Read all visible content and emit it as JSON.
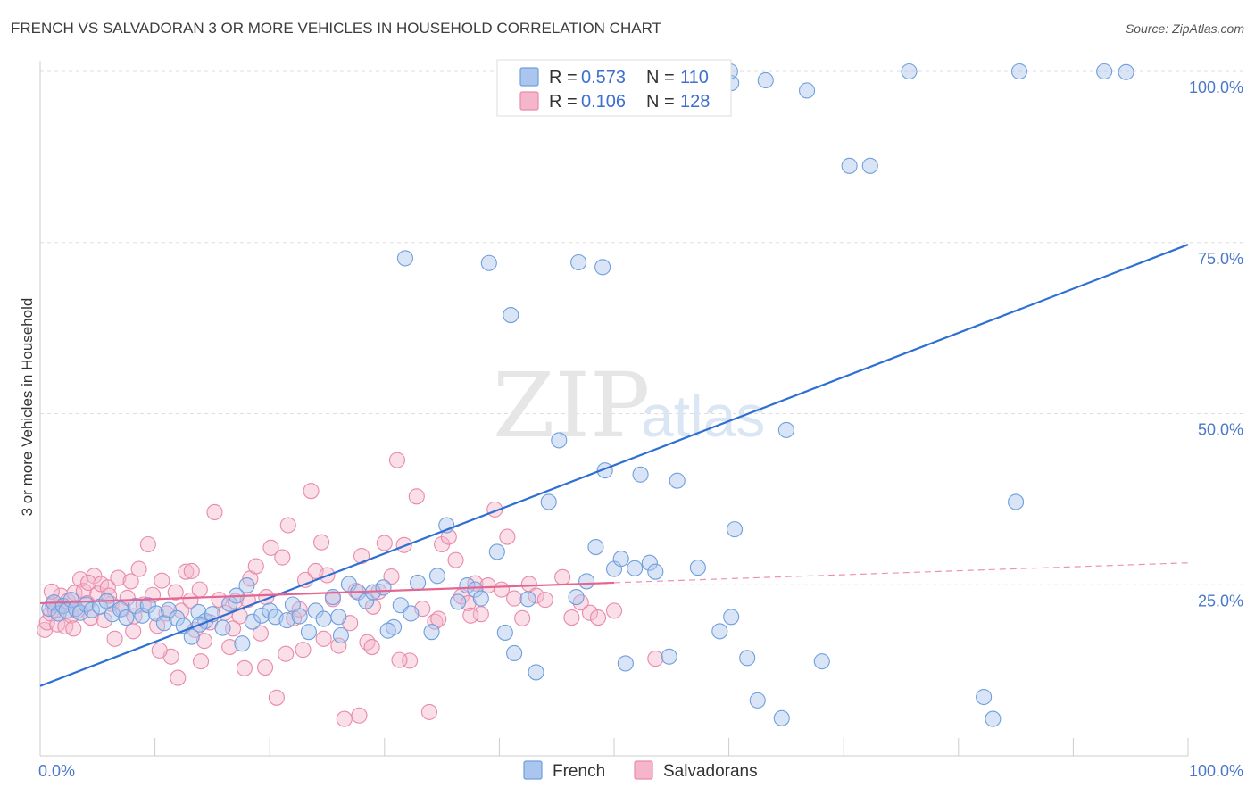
{
  "title": "FRENCH VS SALVADORAN 3 OR MORE VEHICLES IN HOUSEHOLD CORRELATION CHART",
  "source": "Source: ZipAtlas.com",
  "watermark": {
    "zip": "ZIP",
    "atlas": "atlas"
  },
  "colors": {
    "french_fill": "#aac6ee",
    "french_stroke": "#6f9fdc",
    "french_line": "#2d6fd3",
    "salv_fill": "#f5b6cc",
    "salv_stroke": "#e98aab",
    "salv_line": "#e56590",
    "grid": "#dddddd",
    "tick": "#4a78c8"
  },
  "legend": {
    "rows": [
      {
        "r_label": "R =",
        "r_value": "0.573",
        "n_label": "N =",
        "n_value": "110"
      },
      {
        "r_label": "R =",
        "r_value": "0.106",
        "n_label": "N =",
        "n_value": "128"
      }
    ]
  },
  "chart_data": {
    "type": "scatter",
    "title": "FRENCH VS SALVADORAN 3 OR MORE VEHICLES IN HOUSEHOLD CORRELATION CHART",
    "xlabel": "",
    "ylabel": "3 or more Vehicles in Household",
    "xlim": [
      0,
      100
    ],
    "ylim": [
      0,
      100
    ],
    "x_tick_labels": [
      "0.0%",
      "100.0%"
    ],
    "y_ticks": [
      25,
      50,
      75,
      100
    ],
    "y_tick_labels": [
      "25.0%",
      "50.0%",
      "75.0%",
      "100.0%"
    ],
    "grid": true,
    "series": [
      {
        "name": "French",
        "r": 0.573,
        "n": 110,
        "trend": {
          "x0": 0,
          "y0": 10.2,
          "x1": 100,
          "y1": 74.7,
          "style": "solid"
        },
        "points": [
          [
            0.8,
            21.5
          ],
          [
            1.2,
            22.4
          ],
          [
            1.6,
            20.8
          ],
          [
            2.0,
            21.9
          ],
          [
            2.3,
            21.2
          ],
          [
            2.7,
            22.8
          ],
          [
            3.1,
            21.5
          ],
          [
            3.5,
            20.9
          ],
          [
            4.0,
            22.1
          ],
          [
            4.5,
            21.3
          ],
          [
            5.2,
            21.8
          ],
          [
            5.8,
            22.6
          ],
          [
            6.3,
            20.7
          ],
          [
            7.0,
            21.4
          ],
          [
            7.5,
            20.2
          ],
          [
            8.3,
            21.9
          ],
          [
            8.9,
            20.5
          ],
          [
            9.4,
            22.0
          ],
          [
            10.1,
            20.8
          ],
          [
            10.8,
            19.4
          ],
          [
            11.2,
            21.3
          ],
          [
            11.9,
            20.1
          ],
          [
            12.5,
            19.0
          ],
          [
            13.2,
            17.4
          ],
          [
            13.8,
            21.0
          ],
          [
            14.4,
            19.7
          ],
          [
            15.0,
            20.7
          ],
          [
            15.9,
            18.7
          ],
          [
            16.5,
            22.2
          ],
          [
            17.1,
            23.4
          ],
          [
            17.6,
            16.4
          ],
          [
            18.0,
            24.9
          ],
          [
            18.5,
            19.6
          ],
          [
            19.3,
            20.5
          ],
          [
            20.0,
            21.2
          ],
          [
            20.5,
            20.3
          ],
          [
            21.5,
            19.8
          ],
          [
            22.0,
            22.1
          ],
          [
            22.6,
            20.4
          ],
          [
            23.4,
            18.1
          ],
          [
            24.0,
            21.2
          ],
          [
            24.7,
            20.0
          ],
          [
            25.5,
            23.2
          ],
          [
            26.2,
            17.6
          ],
          [
            26.9,
            25.1
          ],
          [
            27.7,
            23.9
          ],
          [
            28.4,
            22.6
          ],
          [
            29.0,
            23.9
          ],
          [
            29.9,
            24.6
          ],
          [
            30.8,
            18.8
          ],
          [
            31.4,
            22.0
          ],
          [
            32.3,
            20.8
          ],
          [
            32.9,
            25.3
          ],
          [
            34.1,
            18.1
          ],
          [
            34.6,
            26.3
          ],
          [
            35.4,
            33.7
          ],
          [
            36.4,
            22.5
          ],
          [
            37.2,
            24.9
          ],
          [
            37.9,
            24.3
          ],
          [
            38.4,
            23.0
          ],
          [
            39.8,
            29.8
          ],
          [
            40.5,
            18.0
          ],
          [
            41.3,
            15.0
          ],
          [
            42.5,
            22.9
          ],
          [
            43.2,
            12.2
          ],
          [
            44.3,
            37.1
          ],
          [
            45.2,
            46.1
          ],
          [
            46.7,
            23.2
          ],
          [
            47.6,
            25.5
          ],
          [
            48.4,
            30.5
          ],
          [
            49.2,
            41.7
          ],
          [
            50.0,
            27.3
          ],
          [
            50.6,
            28.8
          ],
          [
            51.0,
            13.5
          ],
          [
            51.8,
            27.4
          ],
          [
            52.3,
            41.1
          ],
          [
            53.1,
            28.2
          ],
          [
            53.6,
            26.9
          ],
          [
            54.8,
            14.5
          ],
          [
            55.5,
            40.2
          ],
          [
            57.3,
            27.5
          ],
          [
            59.2,
            18.2
          ],
          [
            60.2,
            20.3
          ],
          [
            60.5,
            33.1
          ],
          [
            61.6,
            14.3
          ],
          [
            62.5,
            8.1
          ],
          [
            64.6,
            5.5
          ],
          [
            65.0,
            47.6
          ],
          [
            66.8,
            97.2
          ],
          [
            68.1,
            13.8
          ],
          [
            31.8,
            72.7
          ],
          [
            39.1,
            72.0
          ],
          [
            41.0,
            64.4
          ],
          [
            46.9,
            72.1
          ],
          [
            49.0,
            71.4
          ],
          [
            60.2,
            98.3
          ],
          [
            70.5,
            86.2
          ],
          [
            72.3,
            86.2
          ],
          [
            75.7,
            100.0
          ],
          [
            82.2,
            8.6
          ],
          [
            83.0,
            5.4
          ],
          [
            85.0,
            37.1
          ],
          [
            85.3,
            100.0
          ],
          [
            92.7,
            100.0
          ],
          [
            94.6,
            99.9
          ],
          [
            60.1,
            100.0
          ],
          [
            63.2,
            98.7
          ],
          [
            13.9,
            19.2
          ],
          [
            26.0,
            20.3
          ],
          [
            30.3,
            18.3
          ]
        ]
      },
      {
        "name": "Salvadorans",
        "r": 0.106,
        "n": 128,
        "trend": {
          "x0": 0,
          "y0": 22.3,
          "x1": 50,
          "y1": 25.3,
          "x2": 100,
          "y2": 28.2,
          "style": "solid-then-dashed"
        },
        "points": [
          [
            0.4,
            18.4
          ],
          [
            0.6,
            19.5
          ],
          [
            0.9,
            20.8
          ],
          [
            1.1,
            22.1
          ],
          [
            1.3,
            21.3
          ],
          [
            1.5,
            19.2
          ],
          [
            1.8,
            23.4
          ],
          [
            2.0,
            21.9
          ],
          [
            2.2,
            18.9
          ],
          [
            2.4,
            22.6
          ],
          [
            2.7,
            20.5
          ],
          [
            3.0,
            23.8
          ],
          [
            3.2,
            21.2
          ],
          [
            3.5,
            25.8
          ],
          [
            3.8,
            24.1
          ],
          [
            4.1,
            22.3
          ],
          [
            4.4,
            20.2
          ],
          [
            4.7,
            26.3
          ],
          [
            5.0,
            23.7
          ],
          [
            5.3,
            25.1
          ],
          [
            5.6,
            19.8
          ],
          [
            5.9,
            24.6
          ],
          [
            6.2,
            22.2
          ],
          [
            6.5,
            17.1
          ],
          [
            6.8,
            26.0
          ],
          [
            7.2,
            21.5
          ],
          [
            7.6,
            23.1
          ],
          [
            7.9,
            25.5
          ],
          [
            8.2,
            20.4
          ],
          [
            8.6,
            27.3
          ],
          [
            9.0,
            22.1
          ],
          [
            9.4,
            30.9
          ],
          [
            9.8,
            23.5
          ],
          [
            10.2,
            19.0
          ],
          [
            10.6,
            25.6
          ],
          [
            11.0,
            20.8
          ],
          [
            11.4,
            14.5
          ],
          [
            11.8,
            23.9
          ],
          [
            12.3,
            21.2
          ],
          [
            12.7,
            26.9
          ],
          [
            13.1,
            22.7
          ],
          [
            13.5,
            18.4
          ],
          [
            13.9,
            24.3
          ],
          [
            14.3,
            16.8
          ],
          [
            14.8,
            19.5
          ],
          [
            15.2,
            35.6
          ],
          [
            15.6,
            22.8
          ],
          [
            16.1,
            20.9
          ],
          [
            16.5,
            15.9
          ],
          [
            17.0,
            22.6
          ],
          [
            17.4,
            20.4
          ],
          [
            17.8,
            12.8
          ],
          [
            18.3,
            25.9
          ],
          [
            18.8,
            27.7
          ],
          [
            19.2,
            17.9
          ],
          [
            19.7,
            23.2
          ],
          [
            20.1,
            30.4
          ],
          [
            20.6,
            8.5
          ],
          [
            21.1,
            29.0
          ],
          [
            21.6,
            33.7
          ],
          [
            22.1,
            20.1
          ],
          [
            22.6,
            21.4
          ],
          [
            23.1,
            25.7
          ],
          [
            23.6,
            38.7
          ],
          [
            24.0,
            27.0
          ],
          [
            24.5,
            31.2
          ],
          [
            25.0,
            26.4
          ],
          [
            25.5,
            22.9
          ],
          [
            26.0,
            16.1
          ],
          [
            26.5,
            5.4
          ],
          [
            27.0,
            19.4
          ],
          [
            27.5,
            24.1
          ],
          [
            28.0,
            29.2
          ],
          [
            28.5,
            16.6
          ],
          [
            29.0,
            21.8
          ],
          [
            29.5,
            24.0
          ],
          [
            30.0,
            31.1
          ],
          [
            30.6,
            26.2
          ],
          [
            31.1,
            43.2
          ],
          [
            31.7,
            30.8
          ],
          [
            32.2,
            13.9
          ],
          [
            32.8,
            37.9
          ],
          [
            33.3,
            21.5
          ],
          [
            33.9,
            6.4
          ],
          [
            34.4,
            19.6
          ],
          [
            35.0,
            30.9
          ],
          [
            35.6,
            32.0
          ],
          [
            36.2,
            28.6
          ],
          [
            36.7,
            23.3
          ],
          [
            37.3,
            22.3
          ],
          [
            37.9,
            25.2
          ],
          [
            38.4,
            20.7
          ],
          [
            39.0,
            24.9
          ],
          [
            39.6,
            36.0
          ],
          [
            40.2,
            24.3
          ],
          [
            40.7,
            32.0
          ],
          [
            41.3,
            23.0
          ],
          [
            42.0,
            20.1
          ],
          [
            42.6,
            25.1
          ],
          [
            43.2,
            23.4
          ],
          [
            44.0,
            22.8
          ],
          [
            45.5,
            26.1
          ],
          [
            46.3,
            20.2
          ],
          [
            47.1,
            22.4
          ],
          [
            47.9,
            20.9
          ],
          [
            48.6,
            20.2
          ],
          [
            50.0,
            21.2
          ],
          [
            53.6,
            14.2
          ],
          [
            1.0,
            24.0
          ],
          [
            2.9,
            18.6
          ],
          [
            4.2,
            25.3
          ],
          [
            6.0,
            23.4
          ],
          [
            8.1,
            18.2
          ],
          [
            10.4,
            15.4
          ],
          [
            12.0,
            11.4
          ],
          [
            13.2,
            27.0
          ],
          [
            14.0,
            13.8
          ],
          [
            16.8,
            18.6
          ],
          [
            18.1,
            22.8
          ],
          [
            19.6,
            12.9
          ],
          [
            21.4,
            14.9
          ],
          [
            22.9,
            15.5
          ],
          [
            24.7,
            17.1
          ],
          [
            27.8,
            5.9
          ],
          [
            28.9,
            15.9
          ],
          [
            31.3,
            14.0
          ],
          [
            34.7,
            20.0
          ],
          [
            37.5,
            20.5
          ]
        ]
      }
    ]
  },
  "bottom_legend": {
    "french": "French",
    "salvadorans": "Salvadorans"
  }
}
